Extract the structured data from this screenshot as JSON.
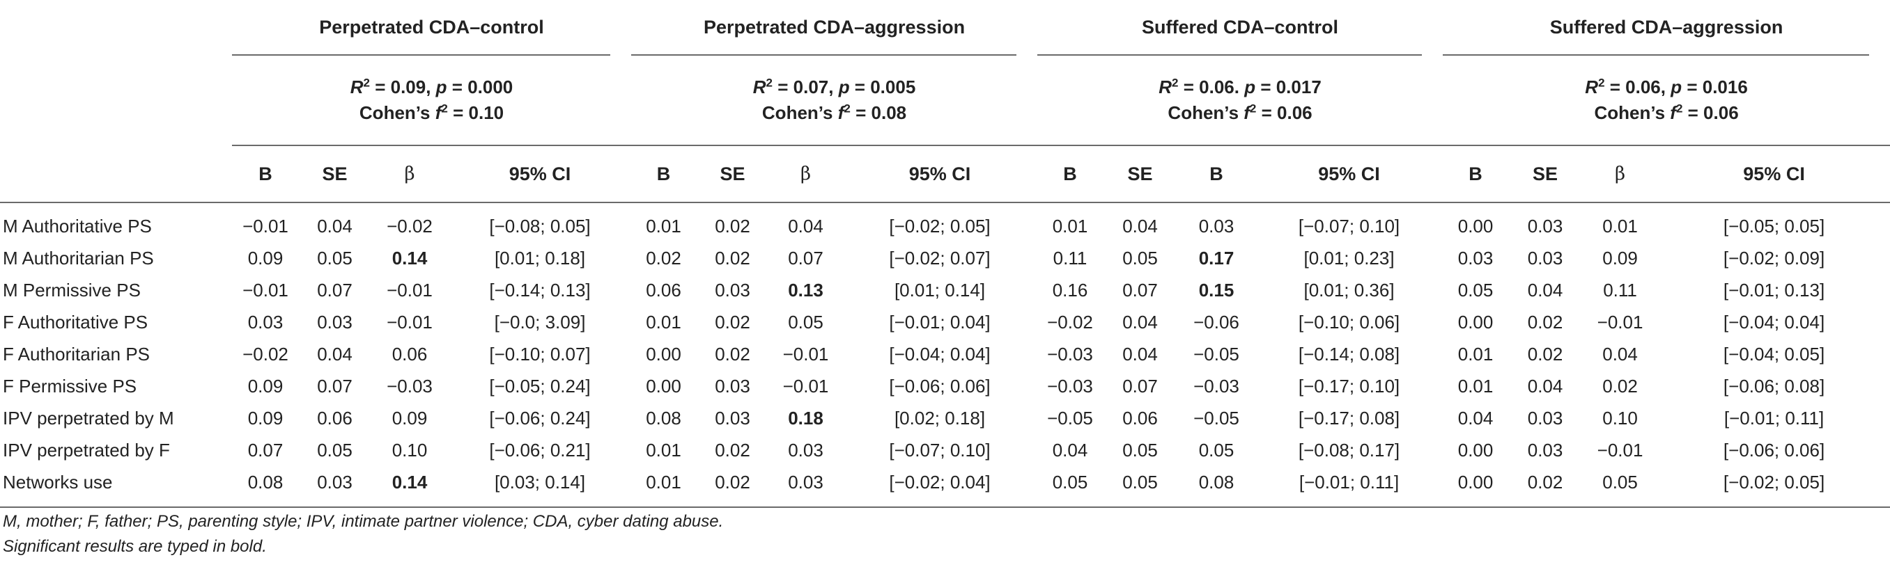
{
  "groups": [
    {
      "title": "Perpetrated CDA–control",
      "r2": "0.09",
      "p": "p = 0.000",
      "f2": "0.10",
      "sep": ","
    },
    {
      "title": "Perpetrated CDA–aggression",
      "r2": "0.07",
      "p": "p = 0.005",
      "f2": "0.08",
      "sep": ","
    },
    {
      "title": "Suffered CDA–control",
      "r2": "0.06",
      "p": "p = 0.017",
      "f2": "0.06",
      "sep": "."
    },
    {
      "title": "Suffered CDA–aggression",
      "r2": "0.06",
      "p": "p = 0.016",
      "f2": "0.06",
      "sep": ","
    }
  ],
  "stat_labels": {
    "r": "R",
    "two": "2",
    "eq": " = ",
    "cohen": "Cohen’s ",
    "f": "f"
  },
  "column_headers": [
    [
      "B",
      "SE",
      "β",
      "95% CI"
    ],
    [
      "B",
      "SE",
      "β",
      "95% CI"
    ],
    [
      "B",
      "SE",
      "B",
      "95% CI"
    ],
    [
      "B",
      "SE",
      "β",
      "95% CI"
    ]
  ],
  "rows": [
    {
      "label": "M Authoritative PS",
      "cells": [
        "−0.01",
        "0.04",
        "−0.02",
        "[−0.08; 0.05]",
        "0.01",
        "0.02",
        "0.04",
        "[−0.02; 0.05]",
        "0.01",
        "0.04",
        "0.03",
        "[−0.07; 0.10]",
        "0.00",
        "0.03",
        "0.01",
        "[−0.05; 0.05]"
      ],
      "bold": []
    },
    {
      "label": "M Authoritarian PS",
      "cells": [
        "0.09",
        "0.05",
        "0.14",
        "[0.01; 0.18]",
        "0.02",
        "0.02",
        "0.07",
        "[−0.02; 0.07]",
        "0.11",
        "0.05",
        "0.17",
        "[0.01; 0.23]",
        "0.03",
        "0.03",
        "0.09",
        "[−0.02; 0.09]"
      ],
      "bold": [
        2,
        10
      ]
    },
    {
      "label": "M Permissive PS",
      "cells": [
        "−0.01",
        "0.07",
        "−0.01",
        "[−0.14; 0.13]",
        "0.06",
        "0.03",
        "0.13",
        "[0.01; 0.14]",
        "0.16",
        "0.07",
        "0.15",
        "[0.01; 0.36]",
        "0.05",
        "0.04",
        "0.11",
        "[−0.01; 0.13]"
      ],
      "bold": [
        6,
        10
      ]
    },
    {
      "label": "F Authoritative PS",
      "cells": [
        "0.03",
        "0.03",
        "−0.01",
        "[−0.0; 3.09]",
        "0.01",
        "0.02",
        "0.05",
        "[−0.01; 0.04]",
        "−0.02",
        "0.04",
        "−0.06",
        "[−0.10; 0.06]",
        "0.00",
        "0.02",
        "−0.01",
        "[−0.04; 0.04]"
      ],
      "bold": []
    },
    {
      "label": "F Authoritarian PS",
      "cells": [
        "−0.02",
        "0.04",
        "0.06",
        "[−0.10; 0.07]",
        "0.00",
        "0.02",
        "−0.01",
        "[−0.04; 0.04]",
        "−0.03",
        "0.04",
        "−0.05",
        "[−0.14; 0.08]",
        "0.01",
        "0.02",
        "0.04",
        "[−0.04; 0.05]"
      ],
      "bold": []
    },
    {
      "label": "F Permissive PS",
      "cells": [
        "0.09",
        "0.07",
        "−0.03",
        "[−0.05; 0.24]",
        "0.00",
        "0.03",
        "−0.01",
        "[−0.06; 0.06]",
        "−0.03",
        "0.07",
        "−0.03",
        "[−0.17; 0.10]",
        "0.01",
        "0.04",
        "0.02",
        "[−0.06; 0.08]"
      ],
      "bold": []
    },
    {
      "label": "IPV perpetrated by M",
      "cells": [
        "0.09",
        "0.06",
        "0.09",
        "[−0.06; 0.24]",
        "0.08",
        "0.03",
        "0.18",
        "[0.02; 0.18]",
        "−0.05",
        "0.06",
        "−0.05",
        "[−0.17; 0.08]",
        "0.04",
        "0.03",
        "0.10",
        "[−0.01; 0.11]"
      ],
      "bold": [
        6
      ]
    },
    {
      "label": "IPV perpetrated by F",
      "cells": [
        "0.07",
        "0.05",
        "0.10",
        "[−0.06; 0.21]",
        "0.01",
        "0.02",
        "0.03",
        "[−0.07; 0.10]",
        "0.04",
        "0.05",
        "0.05",
        "[−0.08; 0.17]",
        "0.00",
        "0.03",
        "−0.01",
        "[−0.06; 0.06]"
      ],
      "bold": []
    },
    {
      "label": "Networks use",
      "cells": [
        "0.08",
        "0.03",
        "0.14",
        "[0.03; 0.14]",
        "0.01",
        "0.02",
        "0.03",
        "[−0.02; 0.04]",
        "0.05",
        "0.05",
        "0.08",
        "[−0.01; 0.11]",
        "0.00",
        "0.02",
        "0.05",
        "[−0.02; 0.05]"
      ],
      "bold": [
        2
      ]
    }
  ],
  "footnotes": [
    "M, mother; F, father; PS, parenting style; IPV, intimate partner violence; CDA, cyber dating abuse.",
    "Significant results are typed in bold."
  ]
}
